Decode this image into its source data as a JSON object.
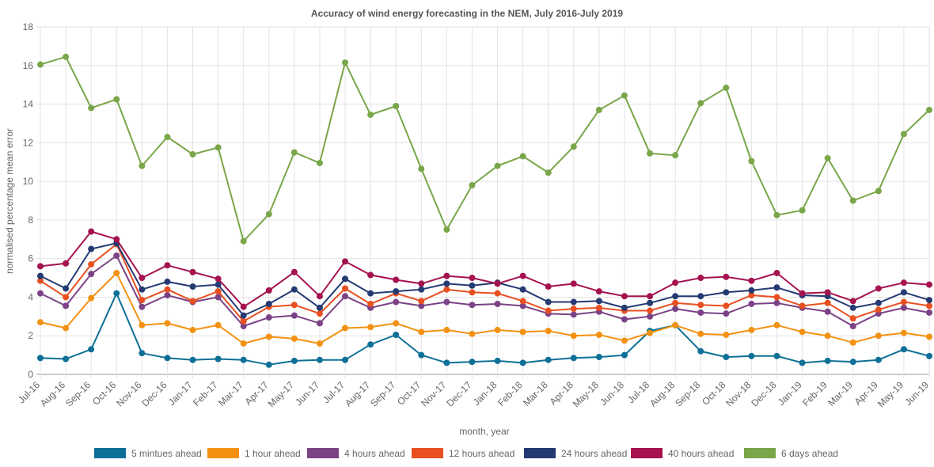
{
  "chart_data": {
    "type": "line",
    "title": "Accuracy of wind energy forecasting in the NEM, July 2016-July 2019",
    "xlabel": "month, year",
    "ylabel": "normalised percentage mean error",
    "ylim": [
      0,
      18
    ],
    "yticks": [
      0,
      2,
      4,
      6,
      8,
      10,
      12,
      14,
      16,
      18
    ],
    "grid": true,
    "legend_position": "bottom",
    "categories": [
      "Jul-16",
      "Aug-16",
      "Sep-16",
      "Oct-16",
      "Nov-16",
      "Dec-16",
      "Jan-17",
      "Feb-17",
      "Mar-17",
      "Apr-17",
      "May-17",
      "Jun-17",
      "Jul-17",
      "Aug-17",
      "Sep-17",
      "Oct-17",
      "Nov-17",
      "Dec-17",
      "Jan-18",
      "Feb-18",
      "Mar-18",
      "Apr-18",
      "May-18",
      "Jun-18",
      "Jul-18",
      "Aug-18",
      "Sep-18",
      "Oct-18",
      "Nov-18",
      "Dec-18",
      "Jan-19",
      "Feb-19",
      "Mar-19",
      "Apr-19",
      "May-19",
      "Jun-19"
    ],
    "series": [
      {
        "name": "5 mintues ahead",
        "color": "#0E7096",
        "values": [
          0.85,
          0.8,
          1.3,
          4.2,
          1.1,
          0.85,
          0.75,
          0.8,
          0.75,
          0.5,
          0.7,
          0.75,
          0.75,
          1.55,
          2.05,
          1.0,
          0.6,
          0.65,
          0.7,
          0.6,
          0.75,
          0.85,
          0.9,
          1.0,
          2.25,
          2.55,
          1.2,
          0.9,
          0.95,
          0.95,
          0.6,
          0.7,
          0.65,
          0.75,
          1.3,
          0.95
        ]
      },
      {
        "name": "1 hour ahead",
        "color": "#F39212",
        "values": [
          2.7,
          2.4,
          3.95,
          5.25,
          2.55,
          2.65,
          2.3,
          2.55,
          1.6,
          1.95,
          1.85,
          1.6,
          2.4,
          2.45,
          2.65,
          2.2,
          2.3,
          2.1,
          2.3,
          2.2,
          2.25,
          2.0,
          2.05,
          1.75,
          2.15,
          2.55,
          2.1,
          2.05,
          2.3,
          2.55,
          2.2,
          2.0,
          1.65,
          2.0,
          2.15,
          1.95
        ]
      },
      {
        "name": "4 hours ahead",
        "color": "#7B4286",
        "values": [
          4.2,
          3.55,
          5.2,
          6.15,
          3.5,
          4.1,
          3.75,
          4.0,
          2.5,
          2.95,
          3.05,
          2.65,
          4.05,
          3.45,
          3.75,
          3.55,
          3.75,
          3.6,
          3.65,
          3.55,
          3.15,
          3.1,
          3.25,
          2.85,
          3.0,
          3.4,
          3.2,
          3.15,
          3.65,
          3.7,
          3.45,
          3.25,
          2.5,
          3.15,
          3.45,
          3.2
        ]
      },
      {
        "name": "12 hours ahead",
        "color": "#E85021",
        "values": [
          4.85,
          4.0,
          5.7,
          6.75,
          3.85,
          4.4,
          3.8,
          4.3,
          2.75,
          3.5,
          3.6,
          3.15,
          4.45,
          3.65,
          4.2,
          3.8,
          4.4,
          4.25,
          4.2,
          3.8,
          3.3,
          3.4,
          3.45,
          3.3,
          3.3,
          3.7,
          3.6,
          3.55,
          4.1,
          4.0,
          3.55,
          3.7,
          2.9,
          3.35,
          3.75,
          3.55
        ]
      },
      {
        "name": "24 hours ahead",
        "color": "#243A73",
        "values": [
          5.1,
          4.45,
          6.5,
          6.8,
          4.4,
          4.8,
          4.55,
          4.65,
          3.05,
          3.65,
          4.4,
          3.45,
          4.95,
          4.2,
          4.3,
          4.4,
          4.7,
          4.6,
          4.75,
          4.4,
          3.75,
          3.75,
          3.8,
          3.45,
          3.7,
          4.05,
          4.05,
          4.25,
          4.35,
          4.5,
          4.1,
          4.05,
          3.45,
          3.7,
          4.25,
          3.85
        ]
      },
      {
        "name": "40 hours ahead",
        "color": "#A5124F",
        "values": [
          5.6,
          5.75,
          7.4,
          7.0,
          5.0,
          5.65,
          5.3,
          4.95,
          3.5,
          4.35,
          5.3,
          4.05,
          5.85,
          5.15,
          4.9,
          4.7,
          5.1,
          5.0,
          4.7,
          5.1,
          4.55,
          4.7,
          4.3,
          4.05,
          4.05,
          4.75,
          5.0,
          5.05,
          4.85,
          5.25,
          4.2,
          4.25,
          3.8,
          4.45,
          4.75,
          4.65
        ]
      },
      {
        "name": "6 days ahead",
        "color": "#79A649",
        "values": [
          16.05,
          16.45,
          13.8,
          14.25,
          10.8,
          12.3,
          11.4,
          11.75,
          6.9,
          8.3,
          11.5,
          10.95,
          16.15,
          13.45,
          13.9,
          10.65,
          7.5,
          9.8,
          10.8,
          11.3,
          10.45,
          11.8,
          13.7,
          14.45,
          11.45,
          11.35,
          14.05,
          14.85,
          11.05,
          8.25,
          8.5,
          11.2,
          9.0,
          9.5,
          12.45,
          13.7
        ]
      }
    ]
  }
}
